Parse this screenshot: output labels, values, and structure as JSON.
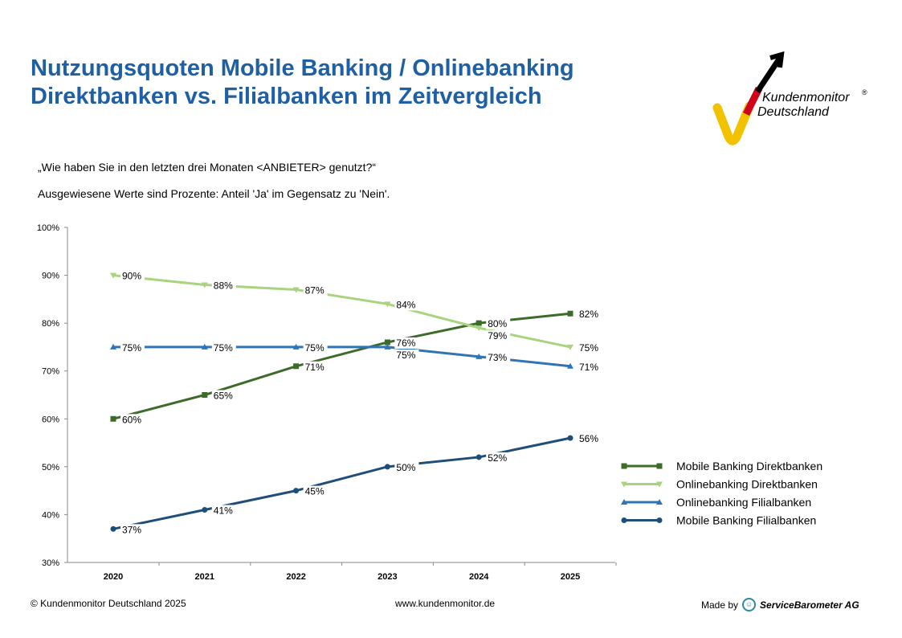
{
  "header": {
    "title_line1": "Nutzungsquoten Mobile Banking / Onlinebanking",
    "title_line2": "Direktbanken vs. Filialbanken im Zeitvergleich"
  },
  "logo": {
    "text_line1": "Kundenmonitor",
    "registered": "®",
    "text_line2": "Deutschland"
  },
  "question": "„Wie haben Sie in den letzten drei Monaten <ANBIETER> genutzt?“",
  "note": "Ausgewiesene Werte sind Prozente: Anteil 'Ja' im Gegensatz zu 'Nein'.",
  "chart_data": {
    "type": "line",
    "categories": [
      "2020",
      "2021",
      "2022",
      "2023",
      "2024",
      "2025"
    ],
    "ylim": [
      30,
      100
    ],
    "yticks": [
      "30%",
      "40%",
      "50%",
      "60%",
      "70%",
      "80%",
      "90%",
      "100%"
    ],
    "grid": false,
    "legend": "right",
    "series": [
      {
        "name": "Mobile Banking Direktbanken",
        "values": [
          60,
          65,
          71,
          76,
          80,
          82
        ],
        "color": "#3d6b2a",
        "marker": "square"
      },
      {
        "name": "Onlinebanking Direktbanken",
        "values": [
          90,
          88,
          87,
          84,
          79,
          75
        ],
        "color": "#a9d37f",
        "marker": "triangle-down"
      },
      {
        "name": "Onlinebanking Filialbanken",
        "values": [
          75,
          75,
          75,
          75,
          73,
          71
        ],
        "color": "#2f75b5",
        "marker": "triangle-up"
      },
      {
        "name": "Mobile Banking Filialbanken",
        "values": [
          37,
          41,
          45,
          50,
          52,
          56
        ],
        "color": "#1f4e79",
        "marker": "circle"
      }
    ]
  },
  "footer": {
    "copyright": "© Kundenmonitor Deutschland 2025",
    "url": "www.kundenmonitor.de",
    "made_by": "Made by",
    "company": "ServiceBarometer AG"
  }
}
